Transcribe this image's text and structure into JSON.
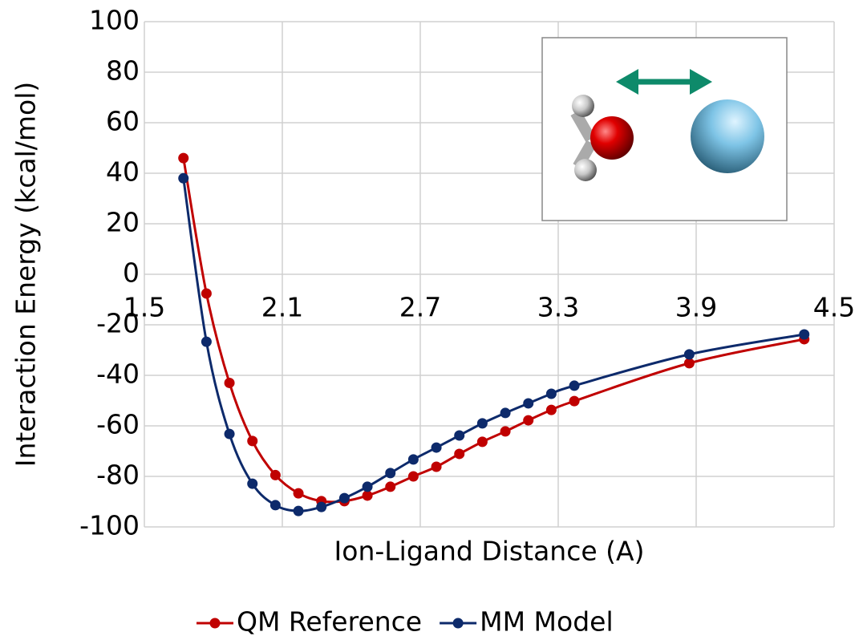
{
  "chart_data": {
    "type": "line",
    "x_label": "Ion-Ligand Distance (A)",
    "y_label": "Interaction Energy (kcal/mol)",
    "x": [
      1.67,
      1.77,
      1.87,
      1.97,
      2.07,
      2.17,
      2.27,
      2.37,
      2.47,
      2.57,
      2.67,
      2.77,
      2.87,
      2.97,
      3.07,
      3.17,
      3.27,
      3.37,
      3.87,
      4.37
    ],
    "series": [
      {
        "name": "QM Reference",
        "color": "#c00000",
        "values": [
          46,
          -7.6,
          -43,
          -66,
          -79.5,
          -86.7,
          -89.8,
          -89.8,
          -87.6,
          -84.1,
          -80,
          -76.2,
          -71.1,
          -66.3,
          -62.2,
          -57.8,
          -53.7,
          -50.2,
          -35.2,
          -25.7
        ]
      },
      {
        "name": "MM Model",
        "color": "#0d2a6b",
        "values": [
          38,
          -26.7,
          -63.2,
          -82.9,
          -91.4,
          -93.7,
          -92.1,
          -88.6,
          -84.1,
          -78.7,
          -73.3,
          -68.6,
          -63.8,
          -59,
          -54.9,
          -51.1,
          -47.3,
          -44.1,
          -31.7,
          -23.8
        ]
      }
    ],
    "xlim": [
      1.5,
      4.5
    ],
    "xticks": [
      1.5,
      2.1,
      2.7,
      3.3,
      3.9,
      4.5
    ],
    "ylim": [
      -100,
      100
    ],
    "yticks": [
      -100,
      -80,
      -60,
      -40,
      -20,
      0,
      20,
      40,
      60,
      80,
      100
    ],
    "grid": true,
    "legend": "bottom"
  }
}
